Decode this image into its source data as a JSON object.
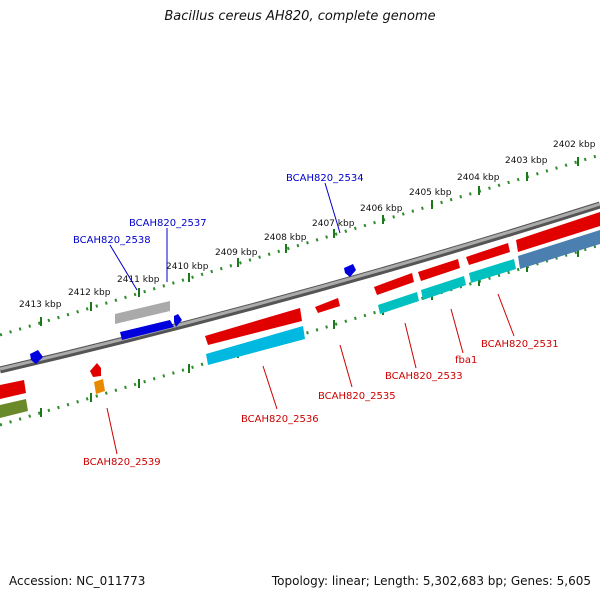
{
  "title": "Bacillus cereus AH820, complete genome",
  "footer": {
    "accession": "Accession: NC_011773",
    "summary": "Topology: linear; Length: 5,302,683 bp; Genes: 5,605"
  },
  "ticks": [
    "2402 kbp",
    "2403 kbp",
    "2404 kbp",
    "2405 kbp",
    "2406 kbp",
    "2407 kbp",
    "2408 kbp",
    "2409 kbp",
    "2410 kbp",
    "2411 kbp",
    "2412 kbp",
    "2413 kbp"
  ],
  "gene_labels": {
    "BCAH820_2534": "BCAH820_2534",
    "BCAH820_2537": "BCAH820_2537",
    "BCAH820_2538": "BCAH820_2538",
    "BCAH820_2539": "BCAH820_2539",
    "BCAH820_2536": "BCAH820_2536",
    "BCAH820_2535": "BCAH820_2535",
    "BCAH820_2533": "BCAH820_2533",
    "fba1": "fba1",
    "BCAH820_2531": "BCAH820_2531"
  },
  "colors": {
    "backbone": "#888888",
    "ticks_outer": "#1a7a1a",
    "ticks_major": "#2e8b2e",
    "label_top": "#0000cc",
    "label_bottom": "#cc0000",
    "red": "#e00000",
    "blue": "#0000dd",
    "cyan": "#00b8e0",
    "teal": "#00c0c0",
    "grey": "#aaaaaa",
    "steelblue": "#4a7fb0",
    "olive": "#6a8a2a",
    "orange": "#e88a00"
  }
}
